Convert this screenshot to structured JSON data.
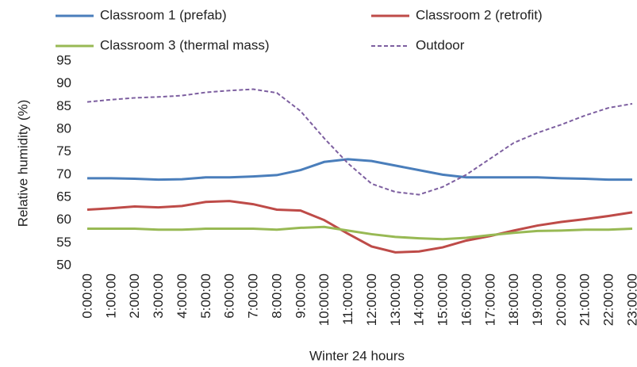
{
  "chart_data": {
    "type": "line",
    "x_label": "Winter 24 hours",
    "y_label": "Relative humidity (%)",
    "categories": [
      "0:00:00",
      "1:00:00",
      "2:00:00",
      "3:00:00",
      "4:00:00",
      "5:00:00",
      "6:00:00",
      "7:00:00",
      "8:00:00",
      "9:00:00",
      "10:00:00",
      "11:00:00",
      "12:00:00",
      "13:00:00",
      "14:00:00",
      "15:00:00",
      "16:00:00",
      "17:00:00",
      "18:00:00",
      "19:00:00",
      "20:00:00",
      "21:00:00",
      "22:00:00",
      "23:00:00"
    ],
    "series": [
      {
        "name": "Classroom 1 (prefab)",
        "color": "#4a7ebb",
        "dashed": false,
        "values": [
          69.2,
          69.2,
          69.1,
          68.9,
          69.0,
          69.4,
          69.4,
          69.6,
          69.9,
          71.0,
          72.8,
          73.4,
          73.0,
          72.0,
          71.0,
          70.0,
          69.4,
          69.4,
          69.4,
          69.4,
          69.2,
          69.1,
          68.9,
          68.9
        ]
      },
      {
        "name": "Classroom 2 (retrofit)",
        "color": "#be4b48",
        "dashed": false,
        "values": [
          62.3,
          62.6,
          63.0,
          62.8,
          63.1,
          64.0,
          64.2,
          63.5,
          62.3,
          62.1,
          60.0,
          57.0,
          54.2,
          52.9,
          53.1,
          54.0,
          55.5,
          56.5,
          57.7,
          58.8,
          59.6,
          60.2,
          60.9,
          61.7
        ]
      },
      {
        "name": "Classroom 3 (thermal mass)",
        "color": "#98b954",
        "dashed": false,
        "values": [
          58.1,
          58.1,
          58.1,
          57.9,
          57.9,
          58.1,
          58.1,
          58.1,
          57.9,
          58.3,
          58.5,
          57.7,
          56.9,
          56.3,
          56.0,
          55.8,
          56.1,
          56.7,
          57.2,
          57.6,
          57.7,
          57.9,
          57.9,
          58.1
        ]
      },
      {
        "name": "Outdoor",
        "color": "#7d5fa0",
        "dashed": true,
        "values": [
          86.0,
          86.5,
          86.9,
          87.1,
          87.4,
          88.1,
          88.5,
          88.8,
          88.0,
          84.0,
          78.0,
          72.5,
          68.0,
          66.2,
          65.6,
          67.3,
          70.0,
          73.5,
          77.0,
          79.2,
          81.0,
          83.0,
          84.7,
          85.6
        ]
      }
    ],
    "ylim": [
      50,
      95
    ],
    "yticks": [
      50,
      55,
      60,
      65,
      70,
      75,
      80,
      85,
      90,
      95
    ],
    "grid": false,
    "legend": "top"
  }
}
